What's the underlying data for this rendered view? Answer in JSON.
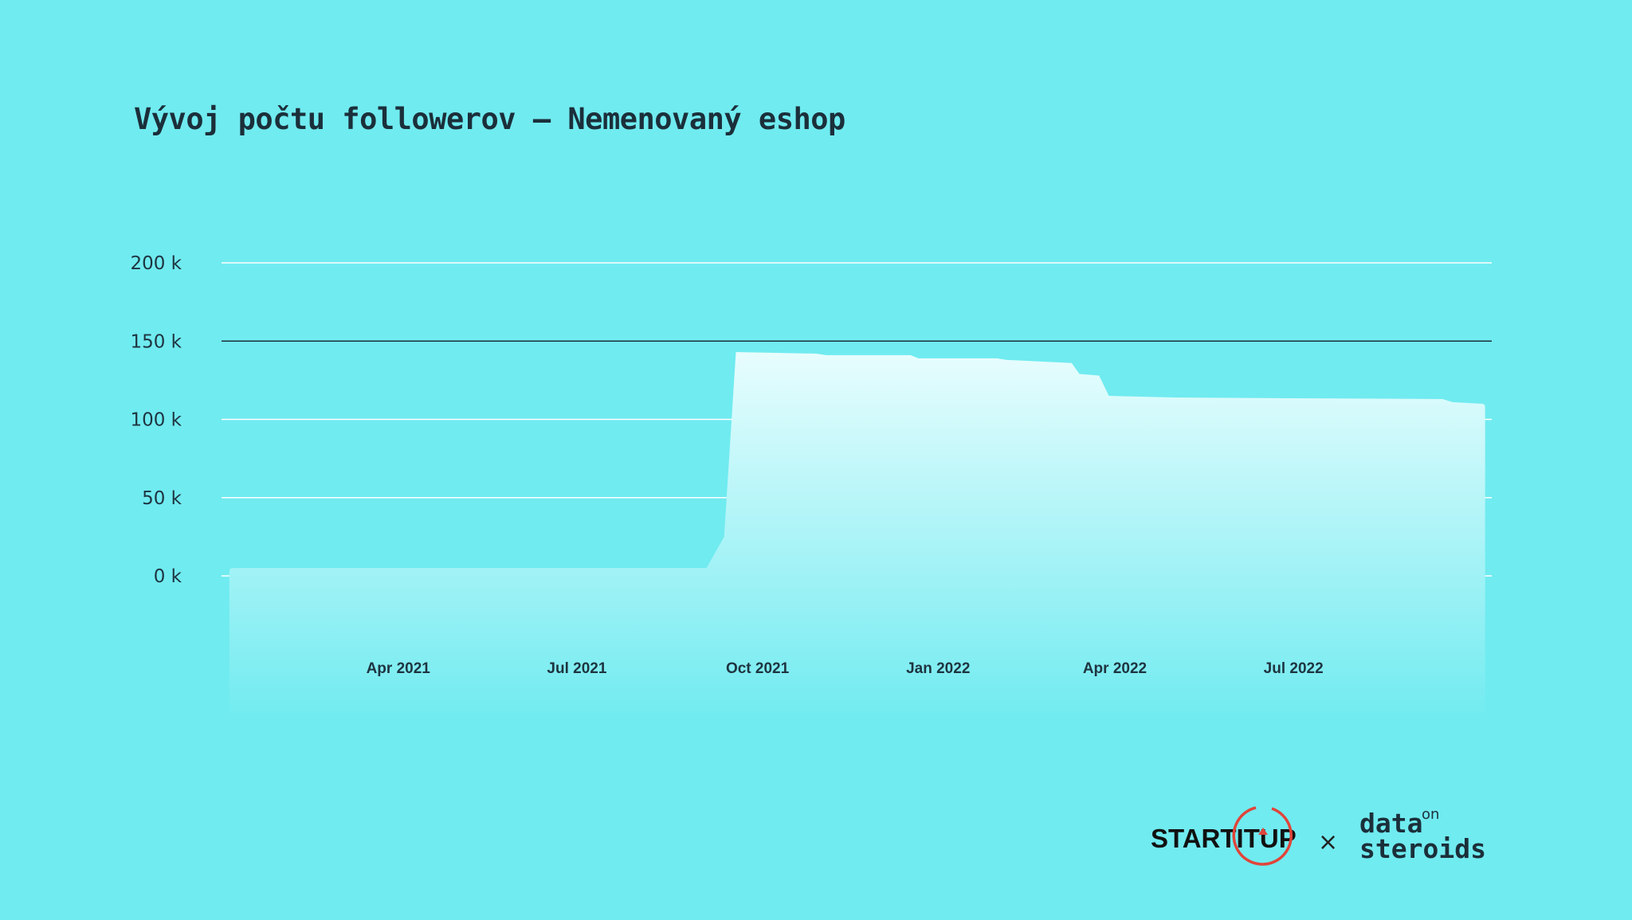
{
  "title": "Vývoj počtu followerov – Nemenovaný eshop",
  "logos": {
    "left": "STARTITUP",
    "separator": "×",
    "right_line1": "data",
    "right_line2": "steroids",
    "right_sup": "on"
  },
  "colors": {
    "background": "#70ebf0",
    "area_top": "#e8fdfe",
    "area_bottom": "#70ebf0",
    "gridline": "#ffffff",
    "highlight_line": "#1b2f3a",
    "text": "#1e3440",
    "logo_ring": "#e0453a"
  },
  "chart_data": {
    "type": "area",
    "title": "Vývoj počtu followerov – Nemenovaný eshop",
    "xlabel": "",
    "ylabel": "",
    "ylim": [
      0,
      200000
    ],
    "yticks": [
      0,
      50000,
      100000,
      150000,
      200000
    ],
    "ytick_labels": [
      "0 k",
      "50 k",
      "100 k",
      "150 k",
      "200 k"
    ],
    "highlight_y": 150000,
    "xlim": [
      "2021-01-01",
      "2022-10-10"
    ],
    "xticks": [
      "2021-04-01",
      "2021-07-01",
      "2021-10-01",
      "2022-01-01",
      "2022-04-01",
      "2022-07-01"
    ],
    "xtick_labels": [
      "Apr 2021",
      "Jul 2021",
      "Oct 2021",
      "Jan 2022",
      "Apr 2022",
      "Jul 2022"
    ],
    "grid": true,
    "series": [
      {
        "points": [
          [
            "2021-01-05",
            5000
          ],
          [
            "2021-02-01",
            5000
          ],
          [
            "2021-05-01",
            5000
          ],
          [
            "2021-08-01",
            5000
          ],
          [
            "2021-09-05",
            5000
          ],
          [
            "2021-09-14",
            25000
          ],
          [
            "2021-09-20",
            143000
          ],
          [
            "2021-10-31",
            142000
          ],
          [
            "2021-11-05",
            141000
          ],
          [
            "2021-12-18",
            141000
          ],
          [
            "2021-12-22",
            139000
          ],
          [
            "2022-01-31",
            139000
          ],
          [
            "2022-02-05",
            138000
          ],
          [
            "2022-03-10",
            136000
          ],
          [
            "2022-03-14",
            129000
          ],
          [
            "2022-03-24",
            128000
          ],
          [
            "2022-03-29",
            115000
          ],
          [
            "2022-05-01",
            114000
          ],
          [
            "2022-07-01",
            113500
          ],
          [
            "2022-09-15",
            113000
          ],
          [
            "2022-09-20",
            111000
          ],
          [
            "2022-10-05",
            110000
          ]
        ]
      }
    ]
  }
}
